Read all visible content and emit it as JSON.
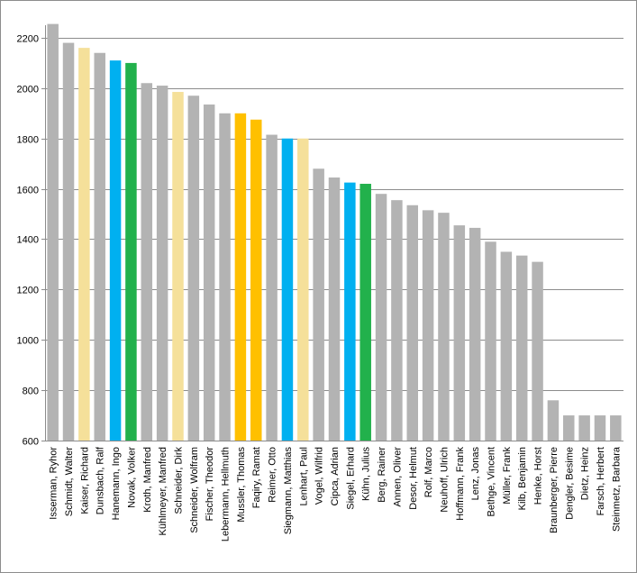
{
  "chart_data": {
    "type": "bar",
    "title": "",
    "xlabel": "",
    "ylabel": "",
    "ylim": [
      600,
      2250
    ],
    "yticks": [
      600,
      800,
      1000,
      1200,
      1400,
      1600,
      1800,
      2000,
      2200
    ],
    "grid": true,
    "legend": "none",
    "categories": [
      "Isserman, Ryhor",
      "Schmidt, Walter",
      "Kaiser, Richard",
      "Dunsbach, Ralf",
      "Hanemann, Ingo",
      "Novak, Volker",
      "Kroth, Manfred",
      "Kühlmeyer, Manfred",
      "Schneider, Dirk",
      "Schneider, Wolfram",
      "Fischer, Theodor",
      "Lebermann, Hellmuth",
      "Mussler, Thomas",
      "Faqiry, Ramat",
      "Reimer, Otto",
      "Siegmann, Matthias",
      "Lenhart, Paul",
      "Vogel, Wilfrid",
      "Cipca, Adrian",
      "Siegel, Erhard",
      "Kühn, Julius",
      "Berg, Rainer",
      "Annen, Oliver",
      "Desor, Helmut",
      "Rolf, Marco",
      "Neuhoff, Ulrich",
      "Hoffmann, Frank",
      "Lenz, Jonas",
      "Bethge, Vincent",
      "Müller, Frank",
      "Kilb, Benjamin",
      "Henke, Horst",
      "Braunberger, Pierre",
      "Dengler, Besime",
      "Dietz, Heinz",
      "Farsch, Herbert",
      "Steinmetz, Barbara"
    ],
    "values": [
      2255,
      2180,
      2160,
      2140,
      2110,
      2100,
      2020,
      2010,
      1985,
      1970,
      1935,
      1900,
      1900,
      1875,
      1815,
      1800,
      1800,
      1680,
      1645,
      1625,
      1620,
      1580,
      1555,
      1535,
      1515,
      1505,
      1455,
      1445,
      1390,
      1350,
      1335,
      1310,
      760,
      700,
      700,
      700,
      700
    ],
    "colors": [
      "#b3b3b3",
      "#b3b3b3",
      "#f5e09a",
      "#b3b3b3",
      "#00b0f0",
      "#22b14c",
      "#b3b3b3",
      "#b3b3b3",
      "#f5e09a",
      "#b3b3b3",
      "#b3b3b3",
      "#b3b3b3",
      "#ffc000",
      "#ffc000",
      "#b3b3b3",
      "#00b0f0",
      "#f5e09a",
      "#b3b3b3",
      "#b3b3b3",
      "#00b0f0",
      "#22b14c",
      "#b3b3b3",
      "#b3b3b3",
      "#b3b3b3",
      "#b3b3b3",
      "#b3b3b3",
      "#b3b3b3",
      "#b3b3b3",
      "#b3b3b3",
      "#b3b3b3",
      "#b3b3b3",
      "#b3b3b3",
      "#b3b3b3",
      "#b3b3b3",
      "#b3b3b3",
      "#b3b3b3",
      "#b3b3b3"
    ],
    "gridline_color": "#8c8c8c"
  }
}
